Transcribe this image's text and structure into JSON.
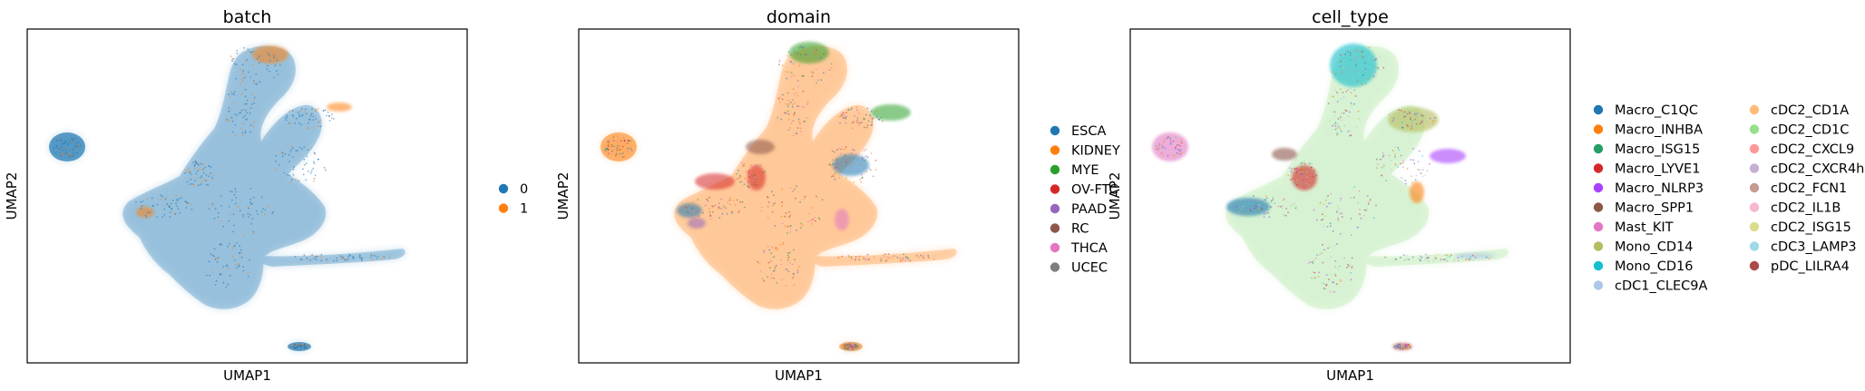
{
  "chart_data": [
    {
      "type": "scatter",
      "title": "batch",
      "xlabel": "UMAP1",
      "ylabel": "UMAP2",
      "legend_placement": "right",
      "legend_columns": 1,
      "legend": [
        {
          "label": "0",
          "color": "#1f77b4"
        },
        {
          "label": "1",
          "color": "#ff7f0e"
        }
      ]
    },
    {
      "type": "scatter",
      "title": "domain",
      "xlabel": "UMAP1",
      "ylabel": "UMAP2",
      "legend_placement": "right",
      "legend_columns": 1,
      "legend": [
        {
          "label": "ESCA",
          "color": "#1f77b4"
        },
        {
          "label": "KIDNEY",
          "color": "#ff7f0e"
        },
        {
          "label": "MYE",
          "color": "#2ca02c"
        },
        {
          "label": "OV-FTC",
          "color": "#d62728"
        },
        {
          "label": "PAAD",
          "color": "#9467bd"
        },
        {
          "label": "RC",
          "color": "#8c564b"
        },
        {
          "label": "THCA",
          "color": "#e377c2"
        },
        {
          "label": "UCEC",
          "color": "#7f7f7f"
        }
      ]
    },
    {
      "type": "scatter",
      "title": "cell_type",
      "xlabel": "UMAP1",
      "ylabel": "UMAP2",
      "legend_placement": "right",
      "legend_columns": 2,
      "legend": [
        {
          "label": "Macro_C1QC",
          "color": "#1f77b4"
        },
        {
          "label": "Macro_INHBA",
          "color": "#ff7f0e"
        },
        {
          "label": "Macro_ISG15",
          "color": "#279e68"
        },
        {
          "label": "Macro_LYVE1",
          "color": "#d62728"
        },
        {
          "label": "Macro_NLRP3",
          "color": "#aa40fc"
        },
        {
          "label": "Macro_SPP1",
          "color": "#8c564b"
        },
        {
          "label": "Mast_KIT",
          "color": "#e377c2"
        },
        {
          "label": "Mono_CD14",
          "color": "#b5bd61"
        },
        {
          "label": "Mono_CD16",
          "color": "#17becf"
        },
        {
          "label": "cDC1_CLEC9A",
          "color": "#aec7e8"
        },
        {
          "label": "cDC2_CD1A",
          "color": "#ffbb78"
        },
        {
          "label": "cDC2_CD1C",
          "color": "#98df8a"
        },
        {
          "label": "cDC2_CXCL9",
          "color": "#ff9896"
        },
        {
          "label": "cDC2_CXCR4hi",
          "color": "#c5b0d5"
        },
        {
          "label": "cDC2_FCN1",
          "color": "#c49c94"
        },
        {
          "label": "cDC2_IL1B",
          "color": "#f7b6d2"
        },
        {
          "label": "cDC2_ISG15",
          "color": "#dbdb8d"
        },
        {
          "label": "cDC3_LAMP3",
          "color": "#9edae5"
        },
        {
          "label": "pDC_LILRA4",
          "color": "#ad494a"
        }
      ]
    }
  ]
}
